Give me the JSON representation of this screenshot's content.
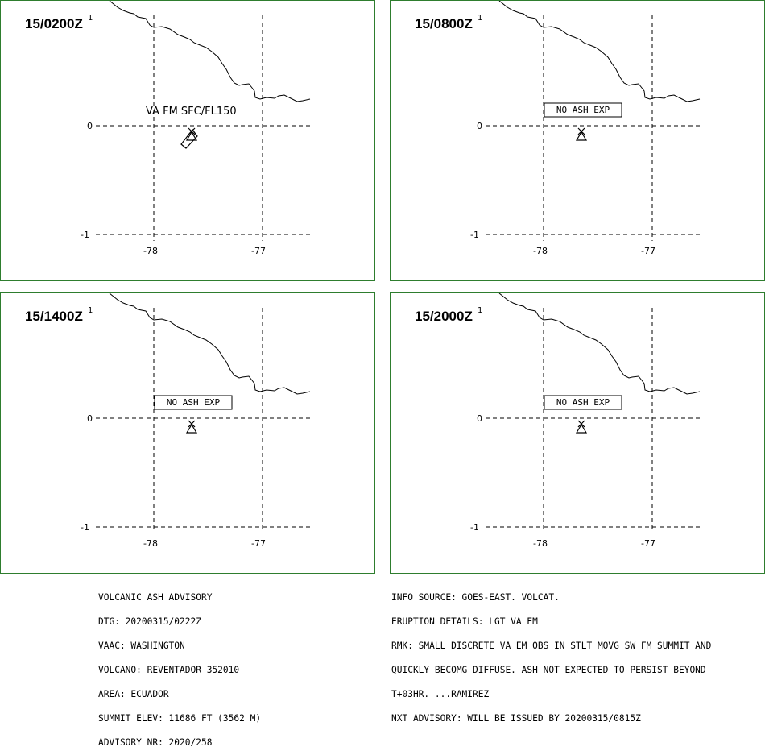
{
  "panels": [
    {
      "time": "15/0200Z",
      "sup": "1",
      "label_type": "va",
      "label": "VA FM SFC/FL150"
    },
    {
      "time": "15/0800Z",
      "sup": "1",
      "label_type": "box",
      "label": "NO ASH EXP"
    },
    {
      "time": "15/1400Z",
      "sup": "1",
      "label_type": "box",
      "label": "NO ASH EXP"
    },
    {
      "time": "15/2000Z",
      "sup": "1",
      "label_type": "box",
      "label": "NO ASH EXP"
    }
  ],
  "axes": {
    "lat_ticks": [
      "0",
      "-1"
    ],
    "lon_ticks": [
      "-78",
      "-77"
    ]
  },
  "colors": {
    "border": "#2e7d2e",
    "lines": "#000000"
  },
  "advisory_left": [
    "VOLCANIC ASH ADVISORY",
    "DTG: 20200315/0222Z",
    "VAAC: WASHINGTON",
    "VOLCANO: REVENTADOR 352010",
    "AREA: ECUADOR",
    "SUMMIT ELEV: 11686 FT (3562 M)",
    "ADVISORY NR: 2020/258"
  ],
  "advisory_right": [
    "INFO SOURCE: GOES-EAST. VOLCAT.",
    "ERUPTION DETAILS: LGT VA EM",
    "RMK: SMALL DISCRETE VA EM OBS IN STLT MOVG SW FM SUMMIT AND",
    "QUICKLY BECOMG DIFFUSE. ASH NOT EXPECTED TO PERSIST BEYOND",
    "T+03HR. ...RAMIREZ",
    "NXT ADVISORY: WILL BE ISSUED BY 20200315/0815Z"
  ]
}
